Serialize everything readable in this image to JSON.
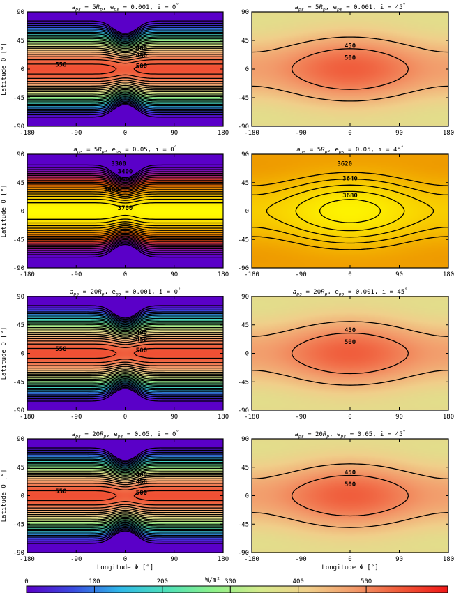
{
  "figure": {
    "colormap_stops": [
      "#5a00c8",
      "#3a4ce0",
      "#2fb8e8",
      "#4fe0b8",
      "#8ef08a",
      "#d6ea8c",
      "#f0cf8a",
      "#f29a6a",
      "#f05838",
      "#f01818"
    ],
    "colorbar": {
      "ticks": [
        0,
        100,
        200,
        300,
        400,
        500
      ],
      "tick_labels": [
        "0",
        "100",
        "200",
        "300",
        "400",
        "500"
      ],
      "unit_label": "W/m²",
      "range": [
        0,
        620
      ]
    }
  },
  "chart_data": [
    {
      "type": "heatmap",
      "title": {
        "a": "a",
        "a_sub": "ps",
        "a_val": " = 5",
        "r_sub": "p",
        "e": ", e",
        "e_sub": "ps",
        "e_val": " = 0.001, i = 0",
        "deg": "°"
      },
      "xlabel": "",
      "ylabel": "Latitude θ [°]",
      "xlim": [
        -180,
        180
      ],
      "ylim": [
        -90,
        90
      ],
      "xticks": [
        -180,
        -90,
        0,
        90,
        180
      ],
      "yticks": [
        -90,
        -45,
        0,
        45,
        90
      ],
      "color_range": [
        0,
        620
      ],
      "field": {
        "base": 560,
        "amp": 540,
        "waist": 0.45,
        "edge": 0.12,
        "center_width": 25
      },
      "contour_labels": [
        {
          "text": "550",
          "x": -118,
          "y": 7
        },
        {
          "text": "400",
          "x": 30,
          "y": 33
        },
        {
          "text": "450",
          "x": 30,
          "y": 22
        },
        {
          "text": "500",
          "x": 30,
          "y": 5
        }
      ]
    },
    {
      "type": "heatmap",
      "title": {
        "a": "a",
        "a_sub": "ps",
        "a_val": " = 5",
        "r_sub": "p",
        "e": ", e",
        "e_sub": "ps",
        "e_val": " = 0.001, i = 45",
        "deg": "°"
      },
      "xlabel": "",
      "ylabel": "",
      "xlim": [
        -180,
        180
      ],
      "ylim": [
        -90,
        90
      ],
      "xticks": [
        -180,
        -90,
        0,
        90,
        180
      ],
      "yticks": [
        -90,
        -45,
        0,
        45,
        90
      ],
      "color_range": [
        0,
        620
      ],
      "field": {
        "base": 545,
        "amp": 160,
        "lon_amp": 70,
        "edge": 0
      },
      "contour_labels": [
        {
          "text": "450",
          "x": 0,
          "y": 37
        },
        {
          "text": "500",
          "x": 0,
          "y": 18
        }
      ]
    },
    {
      "type": "heatmap",
      "title": {
        "a": "a",
        "a_sub": "ps",
        "a_val": " = 5",
        "r_sub": "p",
        "e": ", e",
        "e_sub": "ps",
        "e_val": " = 0.05, i = 0",
        "deg": "°"
      },
      "xlabel": "",
      "ylabel": "Latitude θ [°]",
      "xlim": [
        -180,
        180
      ],
      "ylim": [
        -90,
        90
      ],
      "xticks": [
        -180,
        -90,
        0,
        90,
        180
      ],
      "yticks": [
        -90,
        -45,
        0,
        45,
        90
      ],
      "color_range": [
        3250,
        3730
      ],
      "colormap_stops": [
        "#5a00c8",
        "#7a10b0",
        "#a82070",
        "#d04010",
        "#e07000",
        "#f0a000",
        "#f8d000",
        "#ffff00"
      ],
      "field": {
        "base": 3725,
        "amp": 480,
        "waist": 0.5,
        "edge": 0.1,
        "center_width": 25
      },
      "contour_labels": [
        {
          "text": "3300",
          "x": -12,
          "y": 75
        },
        {
          "text": "3400",
          "x": 0,
          "y": 63
        },
        {
          "text": "3500",
          "x": 0,
          "y": 50
        },
        {
          "text": "3600",
          "x": -25,
          "y": 34
        },
        {
          "text": "3700",
          "x": 0,
          "y": 5
        }
      ]
    },
    {
      "type": "heatmap",
      "title": {
        "a": "a",
        "a_sub": "ps",
        "a_val": " = 5",
        "r_sub": "p",
        "e": ", e",
        "e_sub": "ps",
        "e_val": " = 0.05, i = 45",
        "deg": "°"
      },
      "xlabel": "",
      "ylabel": "",
      "xlim": [
        -180,
        180
      ],
      "ylim": [
        -90,
        90
      ],
      "xticks": [
        -180,
        -90,
        0,
        90,
        180
      ],
      "yticks": [
        -90,
        -45,
        0,
        45,
        90
      ],
      "color_range": [
        3250,
        3730
      ],
      "colormap_stops": [
        "#5a00c8",
        "#7a10b0",
        "#a82070",
        "#d04010",
        "#e07000",
        "#f0a000",
        "#f8d000",
        "#ffff00"
      ],
      "field": {
        "base": 3712,
        "amp": 120,
        "lon_amp": 55,
        "edge": 0
      },
      "contour_labels": [
        {
          "text": "3620",
          "x": -10,
          "y": 75
        },
        {
          "text": "3640",
          "x": 0,
          "y": 52
        },
        {
          "text": "3680",
          "x": 0,
          "y": 25
        }
      ]
    },
    {
      "type": "heatmap",
      "title": {
        "a": "a",
        "a_sub": "ps",
        "a_val": " = 20",
        "r_sub": "p",
        "e": ", e",
        "e_sub": "ps",
        "e_val": " = 0.001, i = 0",
        "deg": "°"
      },
      "xlabel": "",
      "ylabel": "Latitude θ [°]",
      "xlim": [
        -180,
        180
      ],
      "ylim": [
        -90,
        90
      ],
      "xticks": [
        -180,
        -90,
        0,
        90,
        180
      ],
      "yticks": [
        -90,
        -45,
        0,
        45,
        90
      ],
      "color_range": [
        0,
        620
      ],
      "field": {
        "base": 560,
        "amp": 540,
        "waist": 0.45,
        "edge": 0.12,
        "center_width": 25
      },
      "contour_labels": [
        {
          "text": "550",
          "x": -118,
          "y": 7
        },
        {
          "text": "400",
          "x": 30,
          "y": 33
        },
        {
          "text": "450",
          "x": 30,
          "y": 22
        },
        {
          "text": "500",
          "x": 30,
          "y": 5
        }
      ]
    },
    {
      "type": "heatmap",
      "title": {
        "a": "a",
        "a_sub": "ps",
        "a_val": " = 20",
        "r_sub": "p",
        "e": ", e",
        "e_sub": "ps",
        "e_val": " = 0.001, i = 45",
        "deg": "°"
      },
      "xlabel": "",
      "ylabel": "",
      "xlim": [
        -180,
        180
      ],
      "ylim": [
        -90,
        90
      ],
      "xticks": [
        -180,
        -90,
        0,
        90,
        180
      ],
      "yticks": [
        -90,
        -45,
        0,
        45,
        90
      ],
      "color_range": [
        0,
        620
      ],
      "field": {
        "base": 545,
        "amp": 160,
        "lon_amp": 70,
        "edge": 0
      },
      "contour_labels": [
        {
          "text": "450",
          "x": 0,
          "y": 37
        },
        {
          "text": "500",
          "x": 0,
          "y": 18
        }
      ]
    },
    {
      "type": "heatmap",
      "title": {
        "a": "a",
        "a_sub": "ps",
        "a_val": " = 20",
        "r_sub": "p",
        "e": ", e",
        "e_sub": "ps",
        "e_val": " = 0.05, i = 0",
        "deg": "°"
      },
      "xlabel": "Longitude Φ [°]",
      "ylabel": "Latitude θ [°]",
      "xlim": [
        -180,
        180
      ],
      "ylim": [
        -90,
        90
      ],
      "xticks": [
        -180,
        -90,
        0,
        90,
        180
      ],
      "yticks": [
        -90,
        -45,
        0,
        45,
        90
      ],
      "color_range": [
        0,
        620
      ],
      "field": {
        "base": 560,
        "amp": 540,
        "waist": 0.45,
        "edge": 0.12,
        "center_width": 25
      },
      "contour_labels": [
        {
          "text": "550",
          "x": -118,
          "y": 7
        },
        {
          "text": "400",
          "x": 30,
          "y": 33
        },
        {
          "text": "450",
          "x": 30,
          "y": 22
        },
        {
          "text": "500",
          "x": 30,
          "y": 5
        }
      ]
    },
    {
      "type": "heatmap",
      "title": {
        "a": "a",
        "a_sub": "ps",
        "a_val": " = 20",
        "r_sub": "p",
        "e": ", e",
        "e_sub": "ps",
        "e_val": " = 0.05, i = 45",
        "deg": "°"
      },
      "xlabel": "Longitude Φ [°]",
      "ylabel": "",
      "xlim": [
        -180,
        180
      ],
      "ylim": [
        -90,
        90
      ],
      "xticks": [
        -180,
        -90,
        0,
        90,
        180
      ],
      "yticks": [
        -90,
        -45,
        0,
        45,
        90
      ],
      "color_range": [
        0,
        620
      ],
      "field": {
        "base": 545,
        "amp": 160,
        "lon_amp": 70,
        "edge": 0
      },
      "contour_labels": [
        {
          "text": "450",
          "x": 0,
          "y": 37
        },
        {
          "text": "500",
          "x": 0,
          "y": 18
        }
      ]
    }
  ]
}
